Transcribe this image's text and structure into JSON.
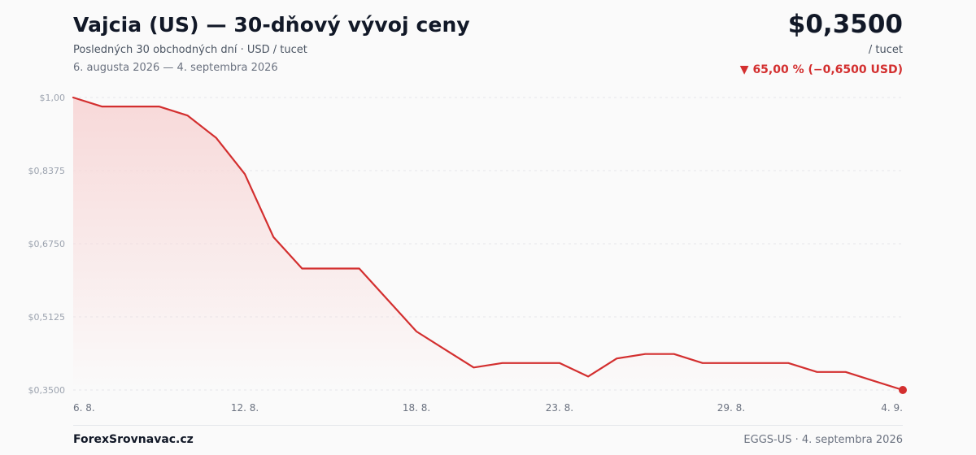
{
  "header": {
    "title": "Vajcia (US) — 30-dňový vývoj ceny",
    "subtitle": "Posledných 30 obchodných dní · USD / tucet",
    "date_range": "6. augusta 2026 — 4. septembra 2026",
    "price": "$0,3500",
    "unit": "/ tucet",
    "change": "▼ 65,00 % (−0,6500 USD)"
  },
  "footer": {
    "brand": "ForexSrovnavac.cz",
    "source": "EGGS-US · 4. septembra 2026"
  },
  "colors": {
    "line": "#d32f2f",
    "fill": "#f8d7d7",
    "grid": "#e5e7eb"
  },
  "chart_data": {
    "type": "area",
    "title": "Vajcia (US) — 30-dňový vývoj ceny",
    "ylim": [
      0.35,
      1.0
    ],
    "y_ticks": [
      1.0,
      0.8375,
      0.675,
      0.5125,
      0.35
    ],
    "y_tick_labels": [
      "$1,00",
      "$0,8375",
      "$0,6750",
      "$0,5125",
      "$0,3500"
    ],
    "x_tick_labels": [
      {
        "index": 0,
        "label": "6. 8."
      },
      {
        "index": 6,
        "label": "12. 8."
      },
      {
        "index": 12,
        "label": "18. 8."
      },
      {
        "index": 17,
        "label": "23. 8."
      },
      {
        "index": 23,
        "label": "29. 8."
      },
      {
        "index": 29,
        "label": "4. 9."
      }
    ],
    "grid": true,
    "series": [
      {
        "values": [
          1.0,
          0.98,
          0.98,
          0.98,
          0.96,
          0.91,
          0.83,
          0.69,
          0.62,
          0.62,
          0.62,
          0.55,
          0.48,
          0.44,
          0.4,
          0.41,
          0.41,
          0.41,
          0.38,
          0.42,
          0.43,
          0.43,
          0.41,
          0.41,
          0.41,
          0.41,
          0.39,
          0.39,
          0.37,
          0.35
        ]
      }
    ]
  }
}
